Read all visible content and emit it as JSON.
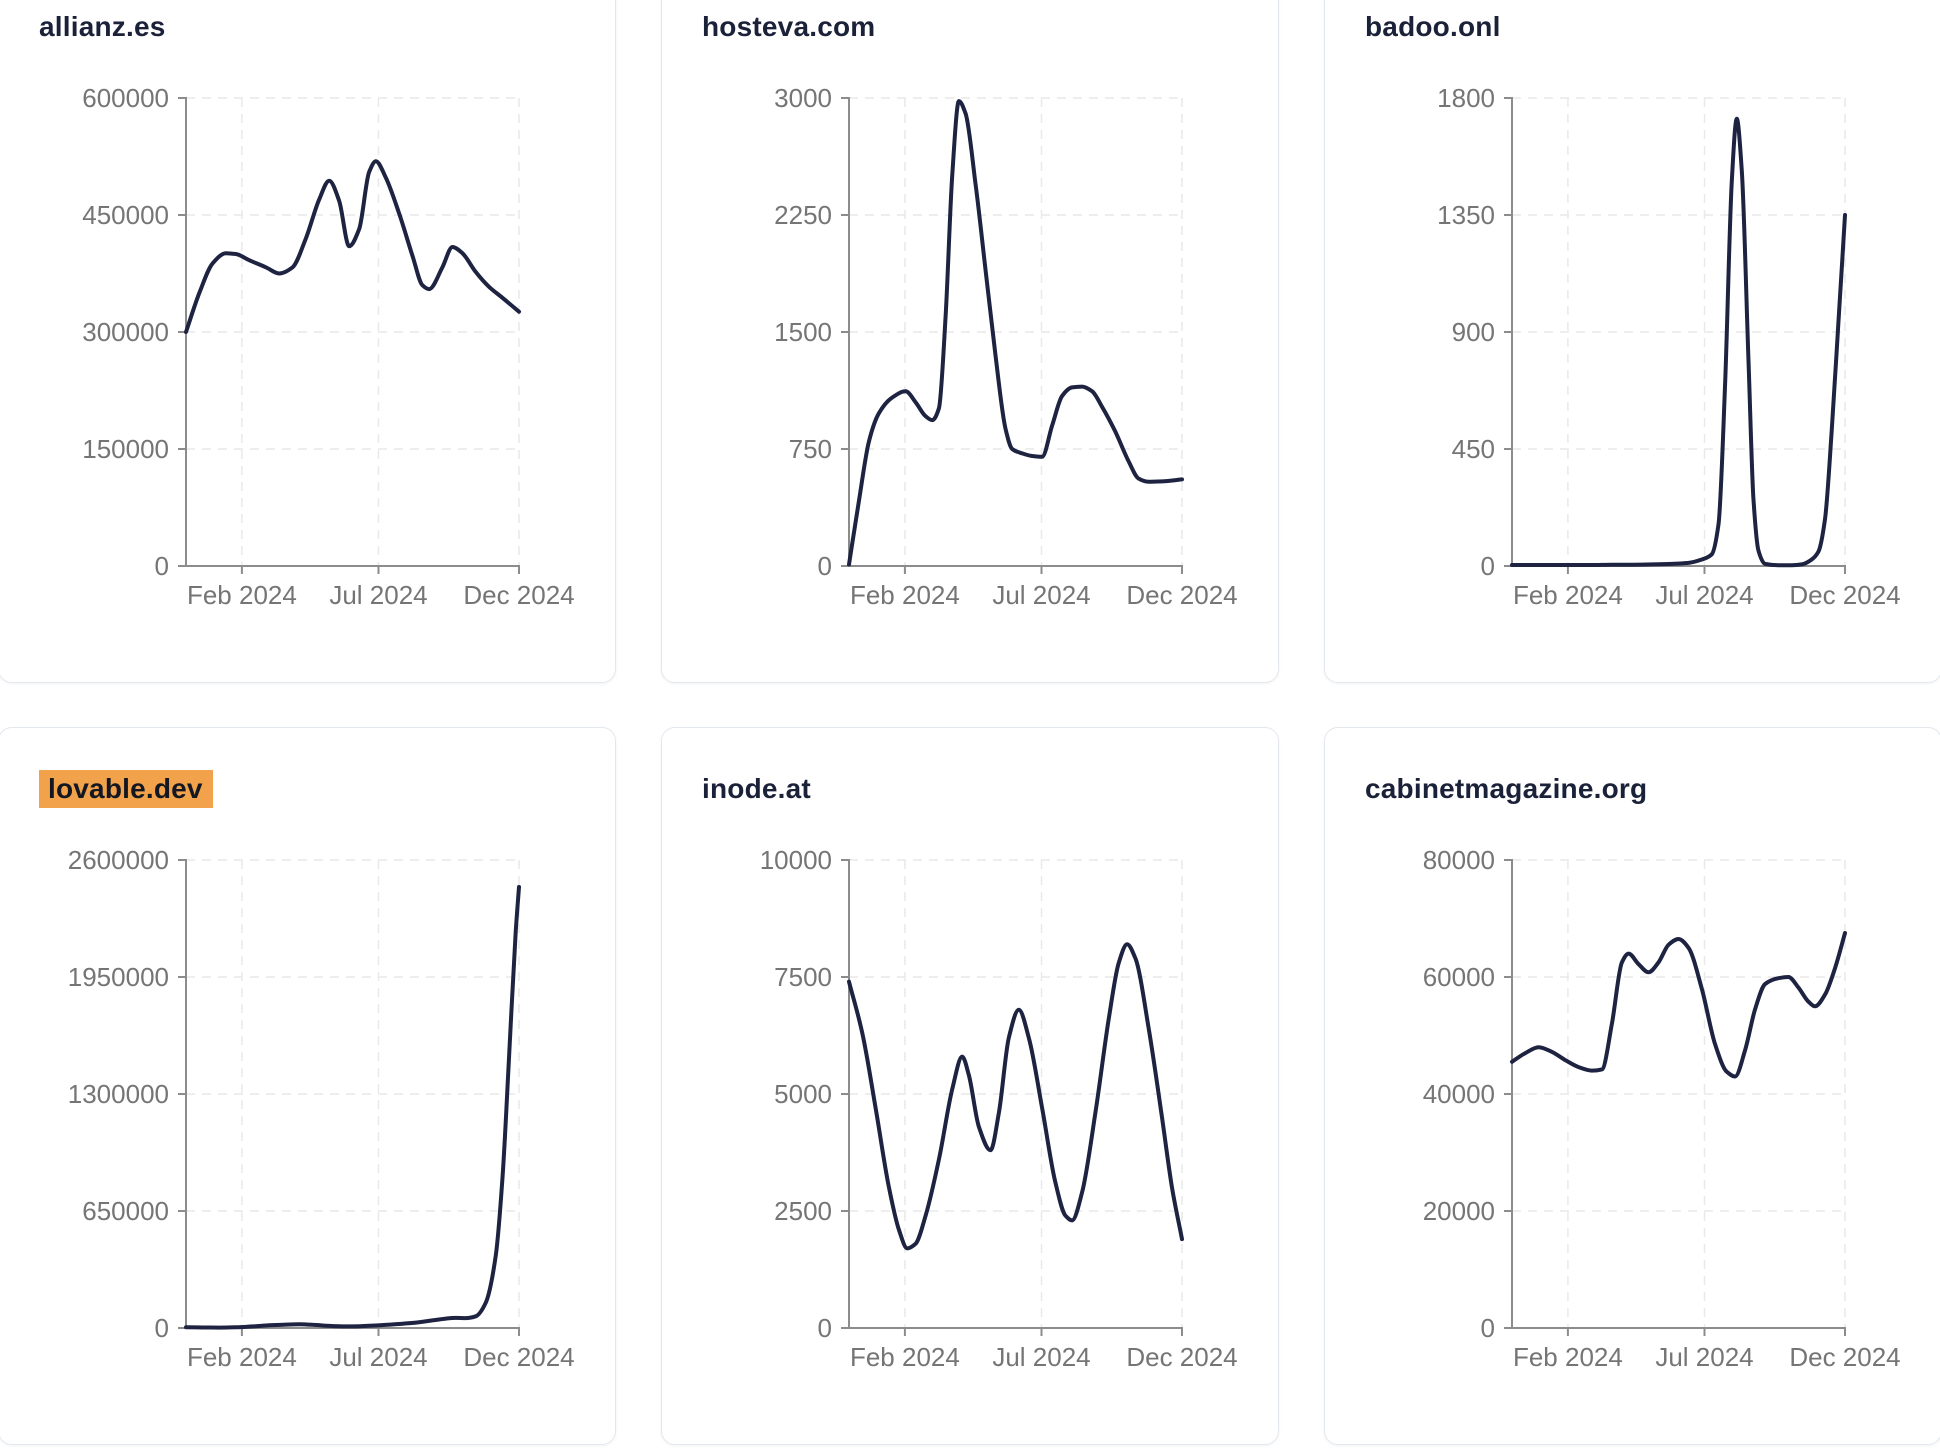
{
  "styles": {
    "page_bg": "#ffffff",
    "card_bg": "#ffffff",
    "card_border": "#e3e8ee",
    "title_color": "#1a2138",
    "tick_label_color": "#757575",
    "axis_color": "#8c8c8c",
    "grid_color": "#e9e9e9",
    "line_color": "#1d2340",
    "highlight_color": "#f2a24b"
  },
  "chart_data": [
    {
      "type": "line",
      "title": "allianz.es",
      "highlighted": false,
      "ylim": [
        0,
        600000
      ],
      "y_ticks": [
        0,
        150000,
        300000,
        450000,
        600000
      ],
      "x_tick_labels": [
        "Feb 2024",
        "Jul 2024",
        "Dec 2024"
      ],
      "x_tick_positions": [
        0.168,
        0.578,
        1
      ],
      "grid": "dashed",
      "legend": false,
      "x": [
        0,
        0.04,
        0.08,
        0.12,
        0.15,
        0.19,
        0.24,
        0.28,
        0.32,
        0.36,
        0.4,
        0.43,
        0.46,
        0.49,
        0.52,
        0.55,
        0.57,
        0.6,
        0.64,
        0.68,
        0.71,
        0.73,
        0.77,
        0.8,
        0.83,
        0.87,
        0.91,
        0.95,
        1
      ],
      "values": [
        300000,
        350000,
        388000,
        401000,
        400000,
        392000,
        383000,
        375000,
        383000,
        420000,
        470000,
        494000,
        468000,
        410000,
        432000,
        505000,
        519000,
        498000,
        452000,
        398000,
        360000,
        355000,
        383000,
        409000,
        401000,
        377000,
        358000,
        344000,
        326000
      ]
    },
    {
      "type": "line",
      "title": "hosteva.com",
      "highlighted": false,
      "ylim": [
        0,
        3000
      ],
      "y_ticks": [
        0,
        750,
        1500,
        2250,
        3000
      ],
      "x_tick_labels": [
        "Feb 2024",
        "Jul 2024",
        "Dec 2024"
      ],
      "x_tick_positions": [
        0.168,
        0.578,
        1
      ],
      "grid": "dashed",
      "legend": false,
      "x": [
        0,
        0.03,
        0.06,
        0.09,
        0.13,
        0.17,
        0.2,
        0.23,
        0.25,
        0.27,
        0.29,
        0.31,
        0.33,
        0.35,
        0.38,
        0.41,
        0.44,
        0.47,
        0.49,
        0.52,
        0.55,
        0.58,
        0.61,
        0.64,
        0.67,
        0.7,
        0.73,
        0.76,
        0.8,
        0.84,
        0.87,
        0.9,
        0.94,
        1
      ],
      "values": [
        10,
        420,
        800,
        980,
        1080,
        1120,
        1050,
        960,
        935,
        1010,
        1600,
        2500,
        2980,
        2900,
        2450,
        1900,
        1350,
        880,
        750,
        722,
        705,
        700,
        900,
        1090,
        1145,
        1150,
        1120,
        1020,
        860,
        670,
        560,
        540,
        542,
        555
      ]
    },
    {
      "type": "line",
      "title": "badoo.onl",
      "highlighted": false,
      "ylim": [
        0,
        1800
      ],
      "y_ticks": [
        0,
        450,
        900,
        1350,
        1800
      ],
      "x_tick_labels": [
        "Feb 2024",
        "Jul 2024",
        "Dec 2024"
      ],
      "x_tick_positions": [
        0.168,
        0.578,
        1
      ],
      "grid": "dashed",
      "legend": false,
      "x": [
        0,
        0.06,
        0.12,
        0.18,
        0.24,
        0.3,
        0.36,
        0.42,
        0.48,
        0.53,
        0.57,
        0.6,
        0.62,
        0.64,
        0.66,
        0.675,
        0.69,
        0.71,
        0.725,
        0.74,
        0.76,
        0.8,
        0.84,
        0.87,
        0.9,
        0.92,
        0.94,
        0.96,
        0.98,
        1
      ],
      "values": [
        4,
        4,
        4,
        4,
        4,
        5,
        5,
        6,
        8,
        12,
        25,
        45,
        160,
        700,
        1480,
        1720,
        1520,
        800,
        260,
        60,
        8,
        3,
        3,
        6,
        25,
        55,
        180,
        520,
        930,
        1350
      ]
    },
    {
      "type": "line",
      "title": "lovable.dev",
      "highlighted": true,
      "ylim": [
        0,
        2600000
      ],
      "y_ticks": [
        0,
        650000,
        1300000,
        1950000,
        2600000
      ],
      "x_tick_labels": [
        "Feb 2024",
        "Jul 2024",
        "Dec 2024"
      ],
      "x_tick_positions": [
        0.168,
        0.578,
        1
      ],
      "grid": "dashed",
      "legend": false,
      "x": [
        0,
        0.05,
        0.1,
        0.15,
        0.2,
        0.25,
        0.3,
        0.34,
        0.38,
        0.42,
        0.46,
        0.5,
        0.55,
        0.6,
        0.65,
        0.7,
        0.74,
        0.78,
        0.81,
        0.84,
        0.87,
        0.9,
        0.93,
        0.95,
        0.97,
        0.99,
        1
      ],
      "values": [
        4000,
        3000,
        2500,
        4000,
        9000,
        15000,
        19000,
        21000,
        18000,
        13000,
        10000,
        9000,
        12000,
        17000,
        24000,
        32000,
        42000,
        52000,
        56000,
        55000,
        65000,
        140000,
        400000,
        820000,
        1500000,
        2200000,
        2450000
      ]
    },
    {
      "type": "line",
      "title": "inode.at",
      "highlighted": false,
      "ylim": [
        0,
        10000
      ],
      "y_ticks": [
        0,
        2500,
        5000,
        7500,
        10000
      ],
      "x_tick_labels": [
        "Feb 2024",
        "Jul 2024",
        "Dec 2024"
      ],
      "x_tick_positions": [
        0.168,
        0.578,
        1
      ],
      "grid": "dashed",
      "legend": false,
      "x": [
        0,
        0.04,
        0.08,
        0.12,
        0.15,
        0.175,
        0.2,
        0.23,
        0.27,
        0.31,
        0.34,
        0.36,
        0.39,
        0.425,
        0.45,
        0.48,
        0.51,
        0.54,
        0.58,
        0.62,
        0.65,
        0.67,
        0.7,
        0.74,
        0.78,
        0.81,
        0.835,
        0.86,
        0.9,
        0.94,
        0.97,
        1
      ],
      "values": [
        7400,
        6300,
        4700,
        3000,
        2100,
        1700,
        1800,
        2400,
        3600,
        5100,
        5800,
        5400,
        4300,
        3800,
        4600,
        6200,
        6800,
        6200,
        4700,
        3100,
        2400,
        2300,
        2900,
        4600,
        6600,
        7800,
        8200,
        7900,
        6400,
        4500,
        3000,
        1900
      ]
    },
    {
      "type": "line",
      "title": "cabinetmagazine.org",
      "highlighted": false,
      "ylim": [
        0,
        80000
      ],
      "y_ticks": [
        0,
        20000,
        40000,
        60000,
        80000
      ],
      "x_tick_labels": [
        "Feb 2024",
        "Jul 2024",
        "Dec 2024"
      ],
      "x_tick_positions": [
        0.168,
        0.578,
        1
      ],
      "grid": "dashed",
      "legend": false,
      "x": [
        0,
        0.04,
        0.08,
        0.12,
        0.16,
        0.2,
        0.24,
        0.27,
        0.3,
        0.33,
        0.35,
        0.38,
        0.41,
        0.44,
        0.47,
        0.5,
        0.53,
        0.57,
        0.61,
        0.645,
        0.67,
        0.7,
        0.73,
        0.76,
        0.8,
        0.83,
        0.86,
        0.89,
        0.91,
        0.94,
        0.97,
        1
      ],
      "values": [
        45500,
        47000,
        48000,
        47200,
        45800,
        44600,
        44000,
        44200,
        52000,
        62500,
        64000,
        62200,
        60800,
        62500,
        65500,
        66500,
        65000,
        58000,
        48500,
        43800,
        43000,
        47500,
        54500,
        58800,
        59800,
        60000,
        58200,
        55800,
        55000,
        57000,
        61500,
        67500
      ]
    }
  ]
}
